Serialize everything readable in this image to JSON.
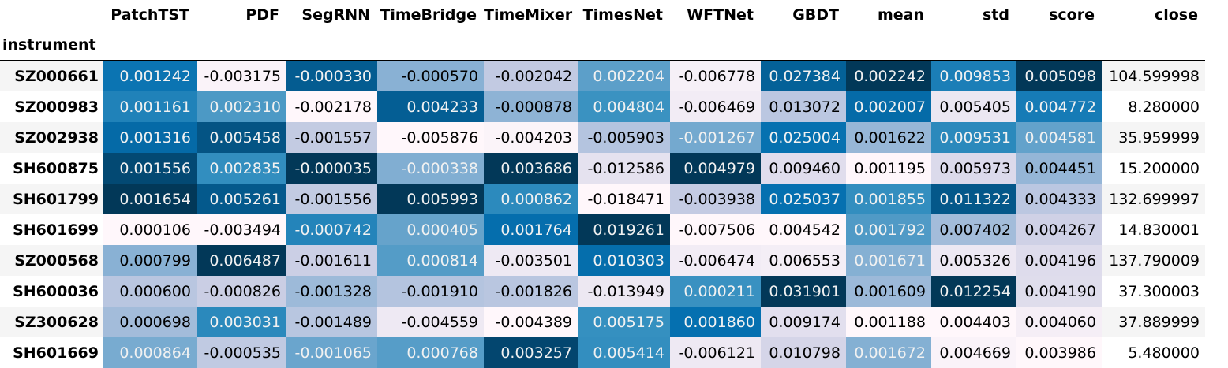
{
  "chart_data": {
    "type": "table",
    "index_name": "instrument",
    "columns": [
      "PatchTST",
      "PDF",
      "SegRNN",
      "TimeBridge",
      "TimeMixer",
      "TimesNet",
      "WFTNet",
      "GBDT",
      "mean",
      "std",
      "score",
      "close"
    ],
    "gradient_columns": [
      "PatchTST",
      "PDF",
      "SegRNN",
      "TimeBridge",
      "TimeMixer",
      "TimesNet",
      "WFTNet",
      "GBDT",
      "mean",
      "std",
      "score"
    ],
    "colormap": [
      "#fff7fb",
      "#ece7f2",
      "#d0d1e6",
      "#a6bddb",
      "#74a9cf",
      "#3690c0",
      "#0570b0",
      "#045a8d",
      "#023858"
    ],
    "rows": [
      {
        "instrument": "SZ000661",
        "cells": [
          "0.001242",
          "-0.003175",
          "-0.000330",
          "-0.000570",
          "-0.002042",
          "0.002204",
          "-0.006778",
          "0.027384",
          "0.002242",
          "0.009853",
          "0.005098",
          "104.599998"
        ]
      },
      {
        "instrument": "SZ000983",
        "cells": [
          "0.001161",
          "0.002310",
          "-0.002178",
          "0.004233",
          "-0.000878",
          "0.004804",
          "-0.006469",
          "0.013072",
          "0.002007",
          "0.005405",
          "0.004772",
          "8.280000"
        ]
      },
      {
        "instrument": "SZ002938",
        "cells": [
          "0.001316",
          "0.005458",
          "-0.001557",
          "-0.005876",
          "-0.004203",
          "-0.005903",
          "-0.001267",
          "0.025004",
          "0.001622",
          "0.009531",
          "0.004581",
          "35.959999"
        ]
      },
      {
        "instrument": "SH600875",
        "cells": [
          "0.001556",
          "0.002835",
          "-0.000035",
          "-0.000338",
          "0.003686",
          "-0.012586",
          "0.004979",
          "0.009460",
          "0.001195",
          "0.005973",
          "0.004451",
          "15.200000"
        ]
      },
      {
        "instrument": "SH601799",
        "cells": [
          "0.001654",
          "0.005261",
          "-0.001556",
          "0.005993",
          "0.000862",
          "-0.018471",
          "-0.003938",
          "0.025037",
          "0.001855",
          "0.011322",
          "0.004333",
          "132.699997"
        ]
      },
      {
        "instrument": "SH601699",
        "cells": [
          "0.000106",
          "-0.003494",
          "-0.000742",
          "0.000405",
          "0.001764",
          "0.019261",
          "-0.007506",
          "0.004542",
          "0.001792",
          "0.007402",
          "0.004267",
          "14.830001"
        ]
      },
      {
        "instrument": "SZ000568",
        "cells": [
          "0.000799",
          "0.006487",
          "-0.001611",
          "0.000814",
          "-0.003501",
          "0.010303",
          "-0.006474",
          "0.006553",
          "0.001671",
          "0.005326",
          "0.004196",
          "137.790009"
        ]
      },
      {
        "instrument": "SH600036",
        "cells": [
          "0.000600",
          "-0.000826",
          "-0.001328",
          "-0.001910",
          "-0.001826",
          "-0.013949",
          "0.000211",
          "0.031901",
          "0.001609",
          "0.012254",
          "0.004190",
          "37.300003"
        ]
      },
      {
        "instrument": "SZ300628",
        "cells": [
          "0.000698",
          "0.003031",
          "-0.001489",
          "-0.004559",
          "-0.004389",
          "0.005175",
          "0.001860",
          "0.009174",
          "0.001188",
          "0.004403",
          "0.004060",
          "37.889999"
        ]
      },
      {
        "instrument": "SH601669",
        "cells": [
          "0.000864",
          "-0.000535",
          "-0.001065",
          "0.000768",
          "0.003257",
          "0.005414",
          "-0.006121",
          "0.010798",
          "0.001672",
          "0.004669",
          "0.003986",
          "5.480000"
        ]
      }
    ]
  }
}
